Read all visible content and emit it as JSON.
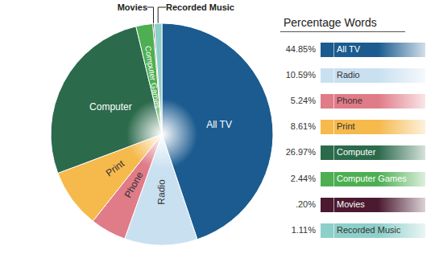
{
  "chart_data": {
    "type": "pie",
    "legend_title": "Percentage Words",
    "categories": [
      "All TV",
      "Radio",
      "Phone",
      "Print",
      "Computer",
      "Computer Games",
      "Movies",
      "Recorded Music"
    ],
    "values": [
      44.85,
      10.59,
      5.24,
      8.61,
      26.97,
      2.44,
      0.2,
      1.11
    ],
    "value_labels": [
      "44.85%",
      "10.59%",
      "5.24%",
      "8.61%",
      "26.97%",
      "2.44%",
      ".20%",
      "1.11%"
    ],
    "colors": [
      "#1b5b8f",
      "#c9e0f0",
      "#e07b88",
      "#f5b94c",
      "#2b6a4b",
      "#4daf52",
      "#4b1a30",
      "#8dcfca"
    ],
    "legend": "right"
  }
}
